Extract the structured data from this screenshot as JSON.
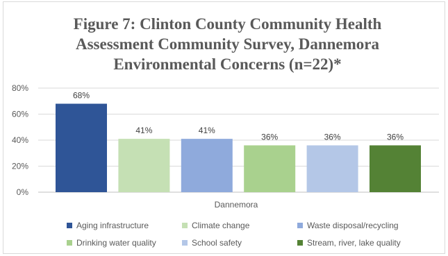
{
  "chart_data": {
    "type": "bar",
    "title_lines": [
      "Figure 7: Clinton County Community Health",
      "Assessment Community Survey, Dannemora",
      "Environmental Concerns (n=22)*"
    ],
    "categories": [
      "Dannemora"
    ],
    "series": [
      {
        "name": "Aging infrastructure",
        "values": [
          68
        ],
        "label": "68%",
        "color": "#2f5597"
      },
      {
        "name": "Climate change",
        "values": [
          41
        ],
        "label": "41%",
        "color": "#c5e0b4"
      },
      {
        "name": "Waste disposal/recycling",
        "values": [
          41
        ],
        "label": "41%",
        "color": "#8faadc"
      },
      {
        "name": "Drinking water quality",
        "values": [
          36
        ],
        "label": "36%",
        "color": "#a9d18e"
      },
      {
        "name": "School safety",
        "values": [
          36
        ],
        "label": "36%",
        "color": "#b4c7e7"
      },
      {
        "name": "Stream, river, lake quality",
        "values": [
          36
        ],
        "label": "36%",
        "color": "#548235"
      }
    ],
    "y_ticks": [
      "0%",
      "20%",
      "40%",
      "60%",
      "80%"
    ],
    "ylim": [
      0,
      80
    ],
    "grid": true,
    "legend_position": "bottom",
    "xlabel": "",
    "ylabel": ""
  }
}
